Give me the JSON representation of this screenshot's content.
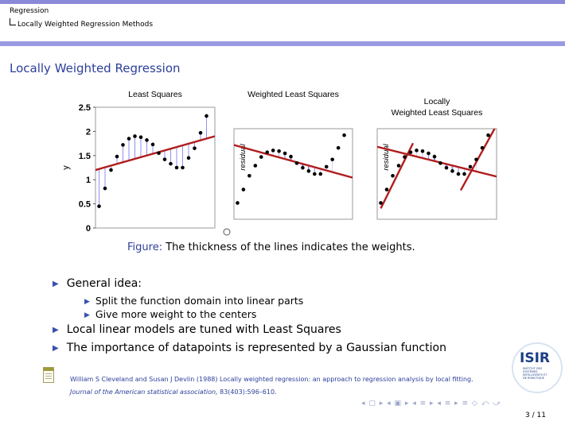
{
  "breadcrumb": {
    "section": "Regression",
    "subsection": "Locally Weighted Regression Methods"
  },
  "frame_title": "Locally Weighted Regression",
  "figure_caption": {
    "prefix": "Figure:",
    "text": "The thickness of the lines indicates the weights."
  },
  "bullets": [
    "General idea:",
    "Split the function domain into linear parts",
    "Give more weight to the centers",
    "Local linear models are tuned with Least Squares",
    "The importance of datapoints is represented by a Gaussian function"
  ],
  "reference": {
    "line1": "William S Cleveland and Susan J Devlin (1988) Locally weighted regression: an approach to regression analysis by local fitting.",
    "journal": "Journal of the American statistical association,",
    "details": "83(403):596–610."
  },
  "logo": {
    "text": "ISIR",
    "subtext": "INSTITUT DES SYSTÈMES INTELLIGENTS ET DE ROBOTIQUE"
  },
  "navigation": {
    "symbols": "◂ ▢ ▸ ◂ ▣ ▸ ◂ ≡ ▸ ◂ ≡ ▸ ≡ ◇ ⤺ ⤻"
  },
  "page_number": "3 / 11",
  "colors": {
    "accent": "#2c3f9a",
    "header_bar": "#8a8ad8",
    "fit_line": "#b11d1d",
    "residual": "#8f8ff0"
  },
  "chart_data": [
    {
      "type": "scatter",
      "title": "Least Squares",
      "ylabel": "y",
      "yticks": [
        "0",
        "0.5",
        "1",
        "1.5",
        "2",
        "2.5"
      ],
      "ylim": [
        0,
        2.5
      ],
      "xlim": [
        0,
        1
      ],
      "x": [
        0.03,
        0.08,
        0.13,
        0.18,
        0.23,
        0.28,
        0.33,
        0.38,
        0.43,
        0.48,
        0.53,
        0.58,
        0.63,
        0.68,
        0.73,
        0.78,
        0.83,
        0.88,
        0.93
      ],
      "y": [
        0.45,
        0.82,
        1.2,
        1.48,
        1.72,
        1.85,
        1.9,
        1.88,
        1.82,
        1.73,
        1.55,
        1.42,
        1.33,
        1.25,
        1.25,
        1.45,
        1.65,
        1.97,
        2.32
      ],
      "fits": [
        {
          "x": [
            0,
            1
          ],
          "y": [
            1.2,
            1.9
          ]
        }
      ]
    },
    {
      "type": "scatter",
      "title": "Weighted Least Squares",
      "ylabel": "residual",
      "ylim": [
        0,
        2.5
      ],
      "xlim": [
        0,
        1
      ],
      "x": [
        0.03,
        0.08,
        0.13,
        0.18,
        0.23,
        0.28,
        0.33,
        0.38,
        0.43,
        0.48,
        0.53,
        0.58,
        0.63,
        0.68,
        0.73,
        0.78,
        0.83,
        0.88,
        0.93
      ],
      "y": [
        0.45,
        0.82,
        1.2,
        1.48,
        1.72,
        1.85,
        1.9,
        1.88,
        1.82,
        1.73,
        1.55,
        1.42,
        1.33,
        1.25,
        1.25,
        1.45,
        1.65,
        1.97,
        2.32
      ],
      "fits": [
        {
          "x": [
            0,
            1
          ],
          "y": [
            2.05,
            1.15
          ]
        }
      ]
    },
    {
      "type": "scatter",
      "title": "Locally Weighted Least Squares",
      "ylabel": "residual",
      "ylim": [
        0,
        2.5
      ],
      "xlim": [
        0,
        1
      ],
      "x": [
        0.03,
        0.08,
        0.13,
        0.18,
        0.23,
        0.28,
        0.33,
        0.38,
        0.43,
        0.48,
        0.53,
        0.58,
        0.63,
        0.68,
        0.73,
        0.78,
        0.83,
        0.88,
        0.93
      ],
      "y": [
        0.45,
        0.82,
        1.2,
        1.48,
        1.72,
        1.85,
        1.9,
        1.88,
        1.82,
        1.73,
        1.55,
        1.42,
        1.33,
        1.25,
        1.25,
        1.45,
        1.65,
        1.97,
        2.32
      ],
      "fits": [
        {
          "x": [
            0.03,
            0.3
          ],
          "y": [
            0.3,
            2.1
          ]
        },
        {
          "x": [
            0,
            1
          ],
          "y": [
            2.0,
            1.18
          ]
        },
        {
          "x": [
            0.7,
            1.0
          ],
          "y": [
            0.8,
            2.6
          ]
        }
      ]
    }
  ]
}
